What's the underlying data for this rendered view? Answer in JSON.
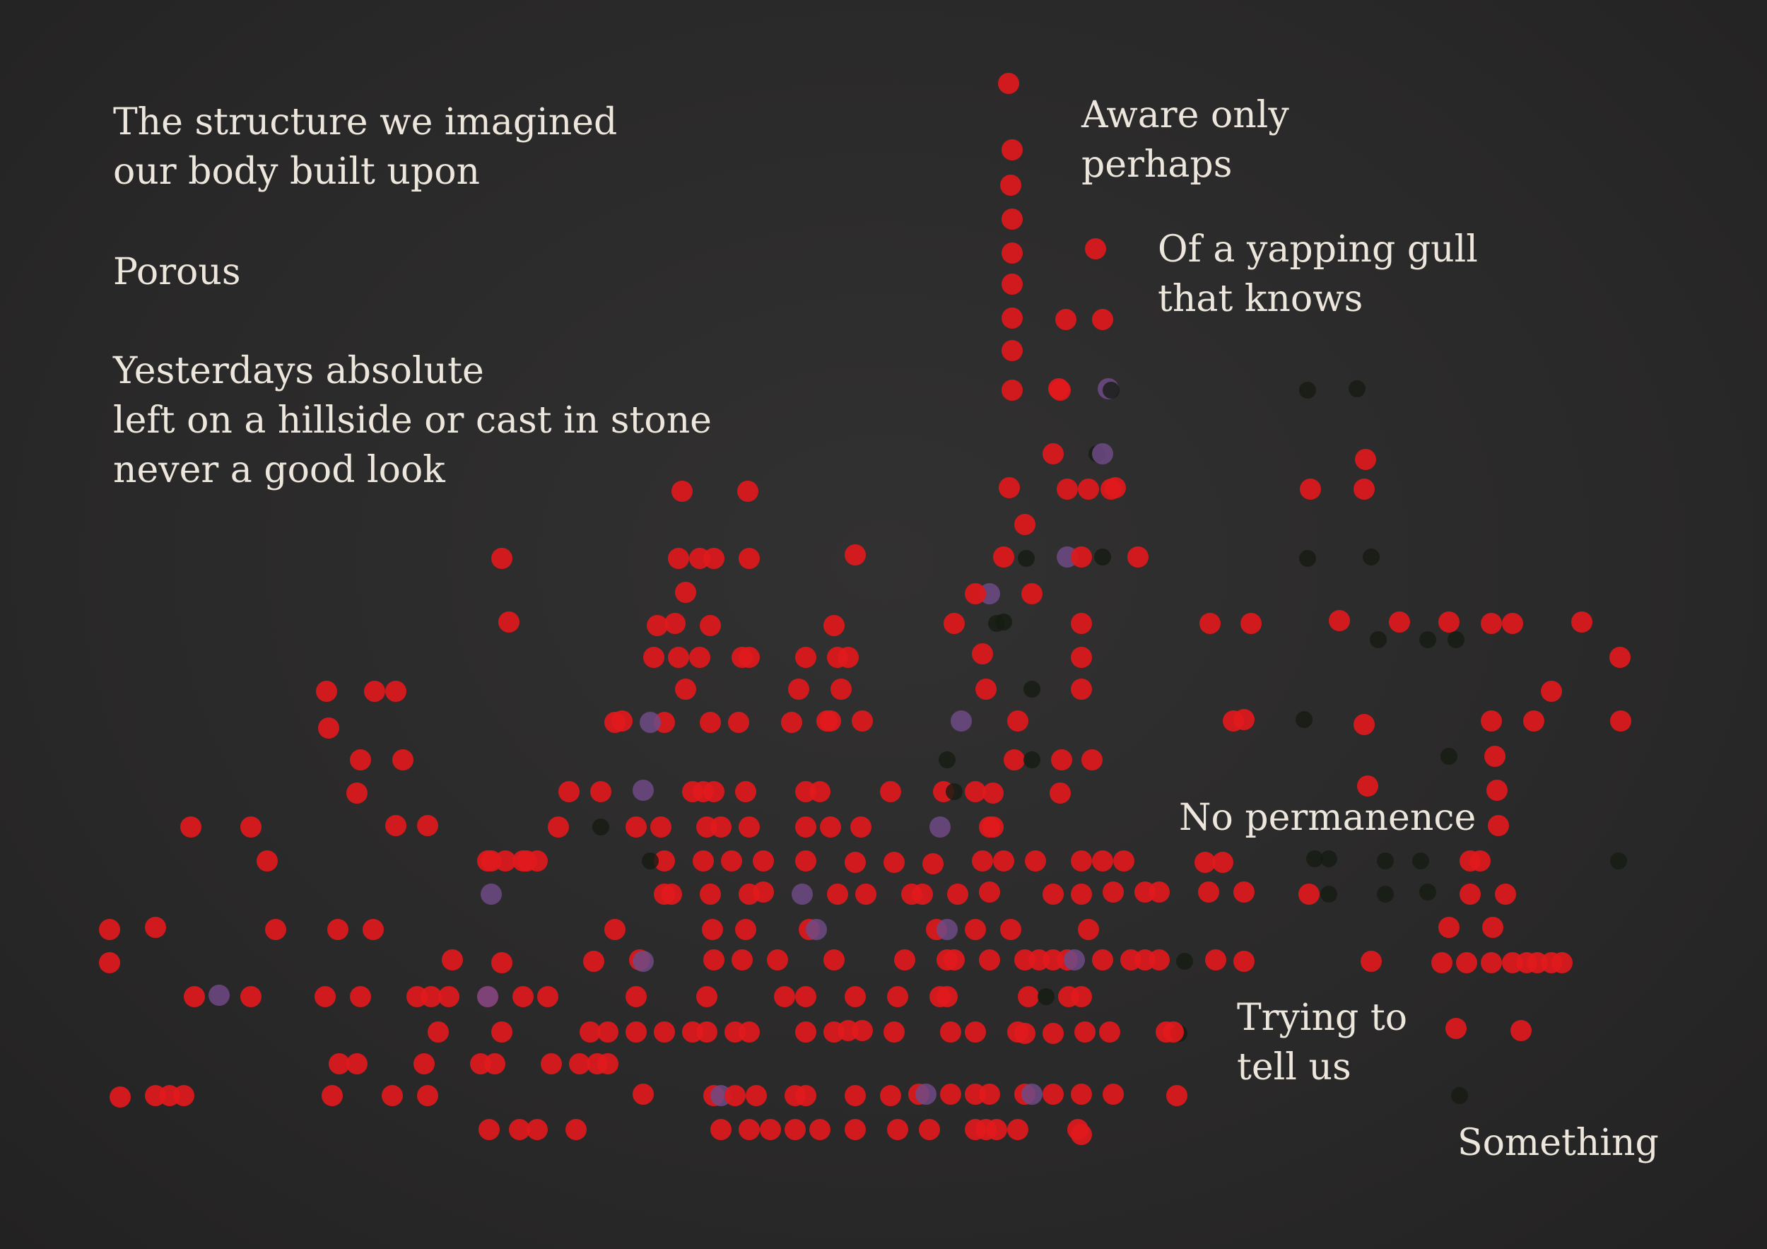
{
  "background": "#2b2a2a",
  "colors": {
    "text": "#ece6dc",
    "dot_red": "#e0191c",
    "dot_purple": "#6e4a86",
    "dot_dark": "#151c12"
  },
  "poem": {
    "block1": {
      "line1": "The structure we imagined",
      "line2": "our body built upon"
    },
    "block2": {
      "line1": "Porous"
    },
    "block3": {
      "line1": "Yesterdays absolute",
      "line2": "left on a hillside or cast in stone",
      "line3": "never a good look"
    },
    "block4": {
      "line1": "Aware only",
      "line2": "perhaps"
    },
    "block5": {
      "line1": "Of a yapping gull",
      "line2": "that knows"
    },
    "block6": {
      "line1": "No permanence"
    },
    "block7": {
      "line1": "Trying to",
      "line2": "tell us"
    },
    "block8": {
      "line1": "Something"
    }
  }
}
